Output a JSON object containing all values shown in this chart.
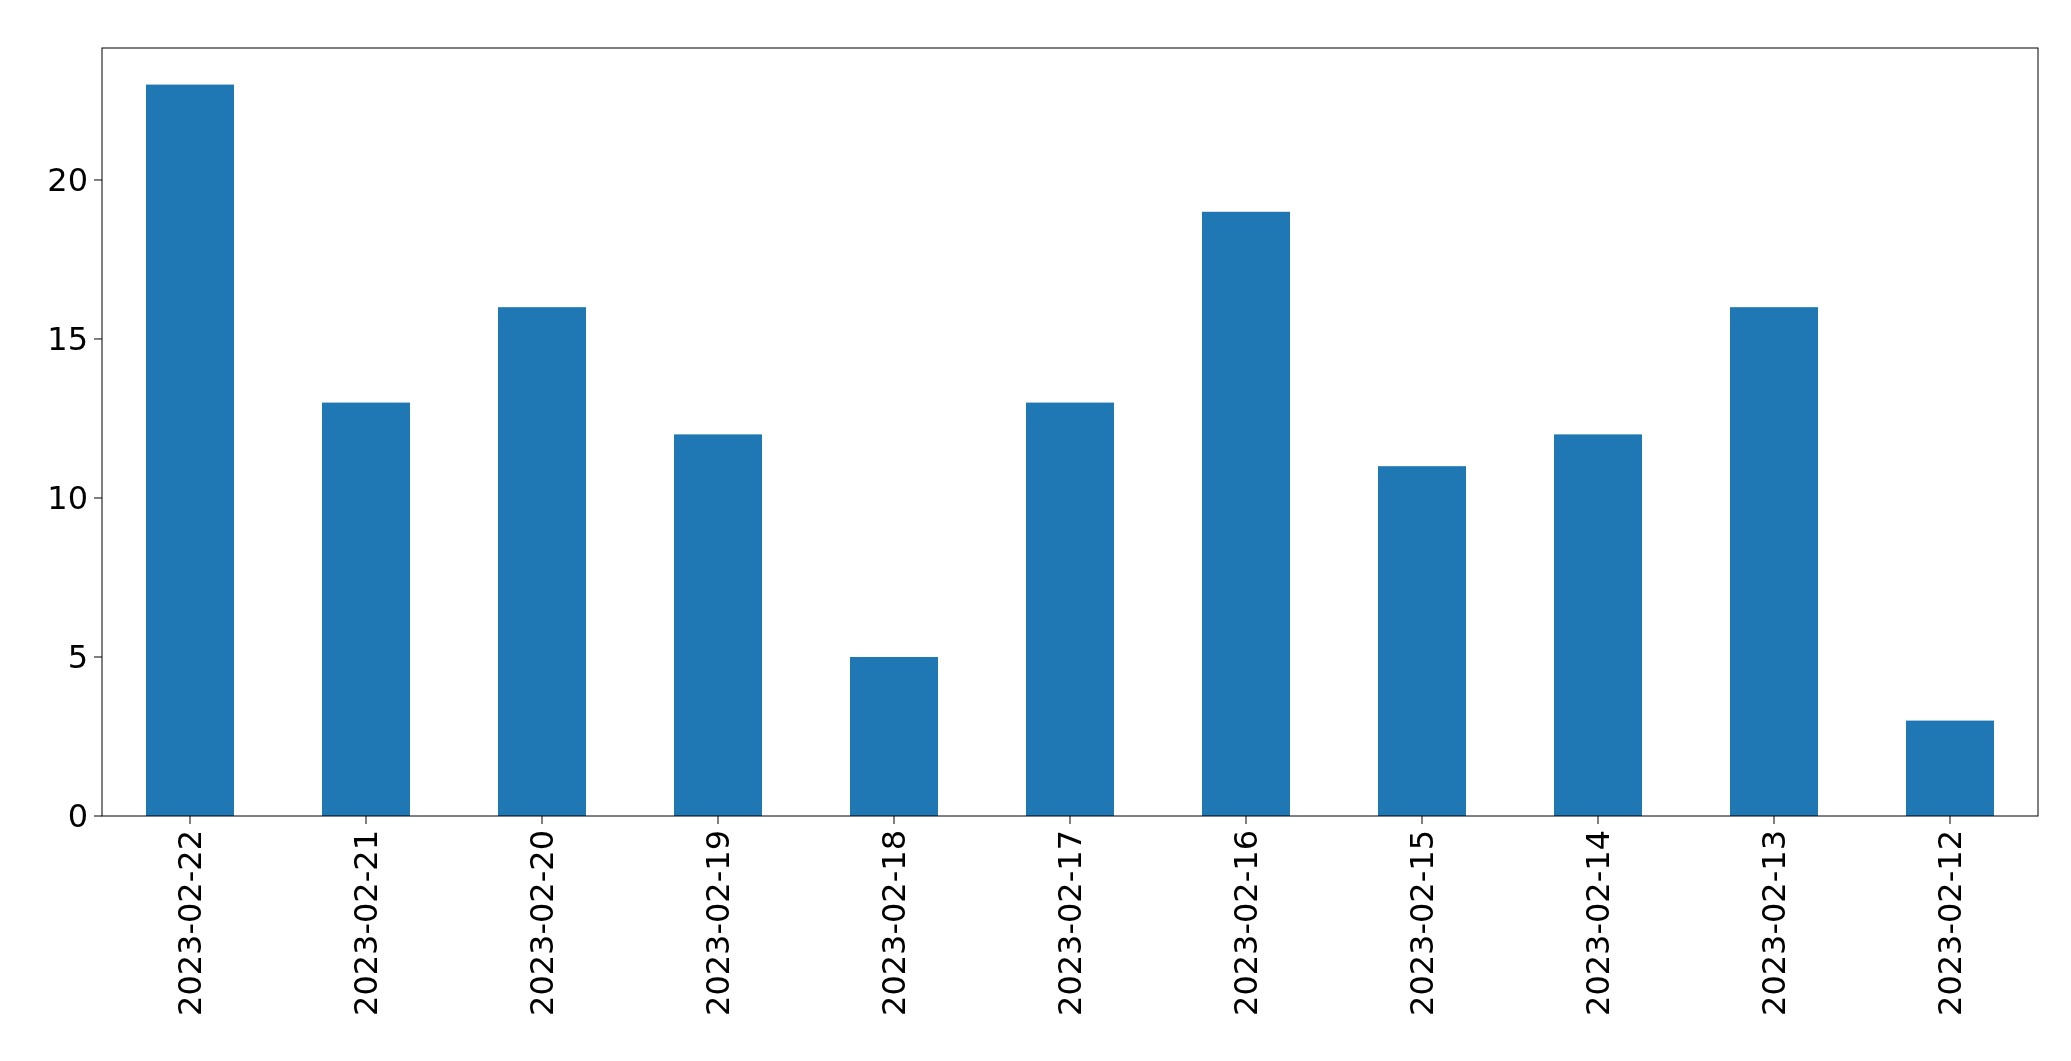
{
  "chart_data": {
    "type": "bar",
    "categories": [
      "2023-02-22",
      "2023-02-21",
      "2023-02-20",
      "2023-02-19",
      "2023-02-18",
      "2023-02-17",
      "2023-02-16",
      "2023-02-15",
      "2023-02-14",
      "2023-02-13",
      "2023-02-12"
    ],
    "values": [
      23,
      13,
      16,
      12,
      5,
      13,
      19,
      11,
      12,
      16,
      3
    ],
    "color": "#1f77b4",
    "ylim": [
      0,
      24.15
    ],
    "yticks": [
      0,
      5,
      10,
      15,
      20
    ]
  }
}
